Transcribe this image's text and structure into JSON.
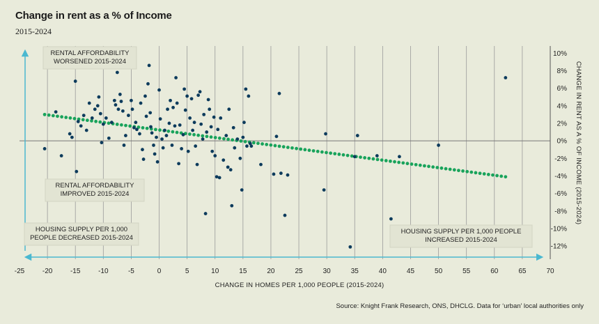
{
  "header": {
    "title": "Change in rent as a % of Income",
    "subtitle": "2015-2024"
  },
  "footer": {
    "source": "Source: Knight Frank Research, ONS, DHCLG. Data for ‘urban’ local authorities only"
  },
  "colors": {
    "background": "#e9ebdb",
    "points": "#0d3b5c",
    "trend": "#19a35b",
    "arrows": "#4ab8d0",
    "grid": "#9a9a9a"
  },
  "chart_data": {
    "type": "scatter",
    "xlabel": "CHANGE IN HOMES PER 1,000 PEOPLE (2015-2024)",
    "ylabel": "CHANGE IN RENT AS A % OF INCOME (2015-2024)",
    "xlim": [
      -25,
      70
    ],
    "ylim": [
      -13.5,
      10.5
    ],
    "x_ticks": [
      -25,
      -20,
      -15,
      -10,
      -5,
      0,
      5,
      10,
      15,
      20,
      25,
      30,
      35,
      40,
      45,
      50,
      55,
      60,
      65,
      70
    ],
    "y_ticks": [
      -12,
      -10,
      -8,
      -6,
      -4,
      -2,
      0,
      2,
      4,
      6,
      8,
      10
    ],
    "y_tick_suffix": "%",
    "grid": "vertical",
    "annotations": [
      {
        "id": "worsened",
        "lines": [
          "RENTAL AFFORDABILITY",
          "WORSENED 2015-2024"
        ]
      },
      {
        "id": "improved",
        "lines": [
          "RENTAL AFFORDABILITY",
          "IMPROVED 2015-2024"
        ]
      },
      {
        "id": "decreased",
        "lines": [
          "HOUSING SUPPLY PER 1,000",
          "PEOPLE DECREASED 2015-2024"
        ]
      },
      {
        "id": "increased",
        "lines": [
          "HOUSING SUPPLY PER 1,000 PEOPLE",
          "INCREASED 2015-2024"
        ]
      }
    ],
    "trend_line": {
      "x": [
        -20.5,
        62
      ],
      "y": [
        3.0,
        -4.1
      ]
    },
    "points": [
      [
        -20.5,
        -0.9
      ],
      [
        -18.5,
        3.3
      ],
      [
        -17.5,
        -1.7
      ],
      [
        -16,
        0.8
      ],
      [
        -15.6,
        0.4
      ],
      [
        -15,
        6.8
      ],
      [
        -14.8,
        -3.5
      ],
      [
        -14.5,
        2.2
      ],
      [
        -14,
        1.7
      ],
      [
        -13.5,
        2.9
      ],
      [
        -13,
        1.2
      ],
      [
        -12.5,
        4.3
      ],
      [
        -12,
        2.6
      ],
      [
        -11.5,
        3.6
      ],
      [
        -11,
        4.0
      ],
      [
        -10.8,
        5.0
      ],
      [
        -10.5,
        3.1
      ],
      [
        -10.3,
        -0.2
      ],
      [
        -10,
        1.9
      ],
      [
        -9.5,
        2.6
      ],
      [
        -9,
        0.3
      ],
      [
        -8.5,
        2.1
      ],
      [
        -8,
        4.6
      ],
      [
        -7.8,
        4.1
      ],
      [
        -7.5,
        7.8
      ],
      [
        -7.3,
        3.6
      ],
      [
        -7,
        5.3
      ],
      [
        -6.8,
        4.5
      ],
      [
        -6.5,
        3.4
      ],
      [
        -6.3,
        -0.5
      ],
      [
        -6,
        0.6
      ],
      [
        -5.5,
        2.9
      ],
      [
        -5,
        4.6
      ],
      [
        -4.8,
        3.6
      ],
      [
        -4.5,
        1.5
      ],
      [
        -4.2,
        2.1
      ],
      [
        -4,
        1.3
      ],
      [
        -3.5,
        0.8
      ],
      [
        -3.3,
        4.3
      ],
      [
        -3,
        -1.0
      ],
      [
        -2.8,
        -2.1
      ],
      [
        -2.5,
        5.1
      ],
      [
        -2.3,
        2.8
      ],
      [
        -2,
        6.5
      ],
      [
        -1.8,
        8.6
      ],
      [
        -1.6,
        3.2
      ],
      [
        -1.5,
        1.6
      ],
      [
        -1.3,
        0.9
      ],
      [
        -1,
        -0.5
      ],
      [
        -0.8,
        -1.5
      ],
      [
        -0.5,
        0.4
      ],
      [
        -0.3,
        -2.4
      ],
      [
        0,
        5.8
      ],
      [
        0.2,
        2.5
      ],
      [
        0.5,
        0.2
      ],
      [
        0.7,
        -0.8
      ],
      [
        1,
        1.2
      ],
      [
        1.3,
        0.6
      ],
      [
        1.5,
        3.6
      ],
      [
        1.8,
        2.0
      ],
      [
        2,
        4.6
      ],
      [
        2.3,
        -0.5
      ],
      [
        2.5,
        3.8
      ],
      [
        2.8,
        1.7
      ],
      [
        3,
        7.2
      ],
      [
        3.2,
        4.3
      ],
      [
        3.5,
        -2.6
      ],
      [
        3.7,
        1.8
      ],
      [
        4,
        -0.9
      ],
      [
        4.3,
        0.7
      ],
      [
        4.5,
        5.9
      ],
      [
        4.7,
        3.5
      ],
      [
        5,
        5.1
      ],
      [
        5.2,
        -1.2
      ],
      [
        5.5,
        2.6
      ],
      [
        5.8,
        4.8
      ],
      [
        6,
        1.2
      ],
      [
        6.3,
        2.1
      ],
      [
        6.5,
        -0.6
      ],
      [
        6.8,
        -2.7
      ],
      [
        7,
        5.2
      ],
      [
        7.3,
        5.6
      ],
      [
        7.5,
        1.9
      ],
      [
        7.8,
        0.2
      ],
      [
        8,
        3.0
      ],
      [
        8.3,
        -8.3
      ],
      [
        8.5,
        1.0
      ],
      [
        8.8,
        4.7
      ],
      [
        9,
        3.6
      ],
      [
        9.3,
        1.6
      ],
      [
        9.5,
        -1.2
      ],
      [
        9.8,
        2.7
      ],
      [
        10,
        -1.7
      ],
      [
        10.3,
        -4.1
      ],
      [
        10.5,
        1.3
      ],
      [
        10.8,
        -4.2
      ],
      [
        11,
        2.6
      ],
      [
        11.5,
        -2.2
      ],
      [
        12,
        0.6
      ],
      [
        12.3,
        -3.0
      ],
      [
        12.5,
        3.6
      ],
      [
        12.8,
        -3.3
      ],
      [
        13,
        -7.4
      ],
      [
        13.3,
        1.5
      ],
      [
        13.5,
        -0.8
      ],
      [
        14,
        0.2
      ],
      [
        14.5,
        -2.0
      ],
      [
        14.8,
        -5.6
      ],
      [
        15,
        0.4
      ],
      [
        15.2,
        2.1
      ],
      [
        15.5,
        5.9
      ],
      [
        15.7,
        -0.6
      ],
      [
        16,
        5.1
      ],
      [
        16.3,
        -0.3
      ],
      [
        16.5,
        -0.6
      ],
      [
        18.2,
        -2.7
      ],
      [
        20.5,
        -3.8
      ],
      [
        21,
        0.5
      ],
      [
        21.5,
        5.4
      ],
      [
        21.8,
        -3.7
      ],
      [
        22.5,
        -8.5
      ],
      [
        23,
        -3.9
      ],
      [
        29.5,
        -5.6
      ],
      [
        29.8,
        0.8
      ],
      [
        34.2,
        -12.1
      ],
      [
        35,
        -1.8
      ],
      [
        35.5,
        0.6
      ],
      [
        39,
        -1.7
      ],
      [
        41.5,
        -8.9
      ],
      [
        43,
        -1.8
      ],
      [
        50,
        -0.5
      ],
      [
        62,
        7.2
      ]
    ]
  }
}
